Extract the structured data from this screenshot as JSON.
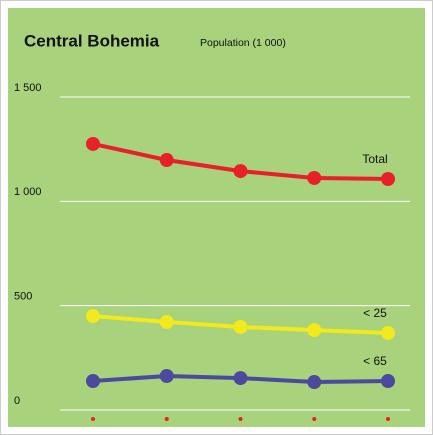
{
  "chart_data": {
    "type": "line",
    "title": "Central Bohemia",
    "subtitle": "Population (1 000)",
    "categories": [
      "1961",
      "1970",
      "1980",
      "1991",
      "1995"
    ],
    "series": [
      {
        "name": "Total",
        "color": "#e8202a",
        "values": [
          1275,
          1198,
          1145,
          1112,
          1107
        ]
      },
      {
        "name": "< 25",
        "color": "#f2ea1c",
        "values": [
          450,
          422,
          398,
          383,
          369
        ]
      },
      {
        "name": "< 65",
        "color": "#4b4a9e",
        "values": [
          139,
          163,
          153,
          134,
          139
        ]
      }
    ],
    "ylim": [
      0,
      1500
    ],
    "yticks": [
      0,
      500,
      {
        "value": 1000,
        "label": "1 000"
      },
      {
        "value": 1500,
        "label": "1 500"
      }
    ],
    "grid": true
  }
}
